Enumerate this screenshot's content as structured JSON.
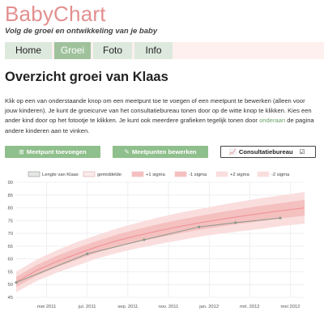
{
  "header": {
    "brand": "BabyChart",
    "tagline": "Volg de groei en ontwikkeling van je baby"
  },
  "nav": {
    "tabs": [
      {
        "label": "Home",
        "active": false
      },
      {
        "label": "Groei",
        "active": true
      },
      {
        "label": "Foto",
        "active": false
      },
      {
        "label": "Info",
        "active": false
      }
    ]
  },
  "main": {
    "title": "Overzicht groei van Klaas",
    "description_part1": "Klik op een van onderstaande knop om een meetpunt toe te voegen of een meetpunt te bewerken (alleen voor jouw kinderen). Je kunt de groeicurve van het consultatiebureau tonen door op de witte knop te klikken. Kies een ander kind door op het fotootje te klikken. Je kunt ook meerdere grafieken tegelijk tonen door ",
    "description_link": "onderaan",
    "description_part2": " de pagina andere kinderen aan te vinken.",
    "buttons": {
      "add": "Meetpunt toevoegen",
      "edit": "Meetpunten bewerken",
      "consult": "Consultatiebureau"
    }
  },
  "icons": {
    "add": "plus-square-icon",
    "edit": "pencil-icon",
    "consult": "line-chart-icon",
    "checkbox": "checked-checkbox-icon"
  },
  "colors": {
    "brand": "#e38f8f",
    "tab_active": "#9fc29d",
    "tab_inactive": "#dde9dd",
    "button": "#8fbf8c",
    "series_line": "#8a9a8a",
    "band_outer": "#fadede",
    "band_mid": "#f4c0c0",
    "median": "#ef8f95"
  },
  "chart_data": {
    "type": "line",
    "ylim": [
      45,
      90
    ],
    "y_ticks": [
      45,
      50,
      55,
      60,
      65,
      70,
      75,
      80,
      85,
      90
    ],
    "xlim": [
      0,
      14.2
    ],
    "x_ticks": [
      {
        "m": 1.5,
        "label": "mei 2011"
      },
      {
        "m": 3.5,
        "label": "jul. 2011"
      },
      {
        "m": 5.5,
        "label": "sep. 2011"
      },
      {
        "m": 7.5,
        "label": "nov. 2011"
      },
      {
        "m": 9.5,
        "label": "jan. 2012"
      },
      {
        "m": 11.5,
        "label": "mrt. 2012"
      },
      {
        "m": 13.5,
        "label": "mei 2012"
      }
    ],
    "legend": [
      "Lengte van Klaas",
      "gemiddelde",
      "+1 sigma",
      "-1 sigma",
      "+2 sigma",
      "-2 sigma"
    ],
    "measurements": {
      "name": "Lengte van Klaas",
      "points": [
        {
          "m": 0,
          "y": 50.8
        },
        {
          "m": 3.5,
          "y": 62
        },
        {
          "m": 6.3,
          "y": 67.5
        },
        {
          "m": 9.0,
          "y": 72.5
        },
        {
          "m": 10.8,
          "y": 74.2
        },
        {
          "m": 13.0,
          "y": 76.0
        }
      ]
    },
    "reference": {
      "m": [
        0,
        1,
        2,
        3,
        4,
        5,
        6,
        7,
        8,
        9,
        10,
        11,
        12,
        13,
        14.2
      ],
      "median": [
        51.0,
        55.5,
        59.0,
        62.0,
        64.8,
        67.2,
        69.2,
        71.0,
        72.6,
        74.1,
        75.4,
        76.6,
        77.7,
        78.8,
        80.0
      ],
      "plus1": [
        53.0,
        57.6,
        61.2,
        64.3,
        67.1,
        69.6,
        71.7,
        73.6,
        75.3,
        76.8,
        78.2,
        79.5,
        80.7,
        81.8,
        83.1
      ],
      "minus1": [
        49.0,
        53.4,
        56.8,
        59.7,
        62.5,
        64.8,
        66.7,
        68.4,
        69.9,
        71.4,
        72.6,
        73.7,
        74.7,
        75.8,
        76.9
      ],
      "plus2": [
        55.0,
        59.7,
        63.4,
        66.6,
        69.4,
        72.0,
        74.2,
        76.2,
        78.0,
        79.5,
        81.0,
        82.4,
        83.7,
        84.8,
        86.2
      ],
      "minus2": [
        47.0,
        51.3,
        54.6,
        57.4,
        60.2,
        62.4,
        64.2,
        65.8,
        67.2,
        68.7,
        69.8,
        70.8,
        71.7,
        72.8,
        73.8
      ]
    }
  }
}
